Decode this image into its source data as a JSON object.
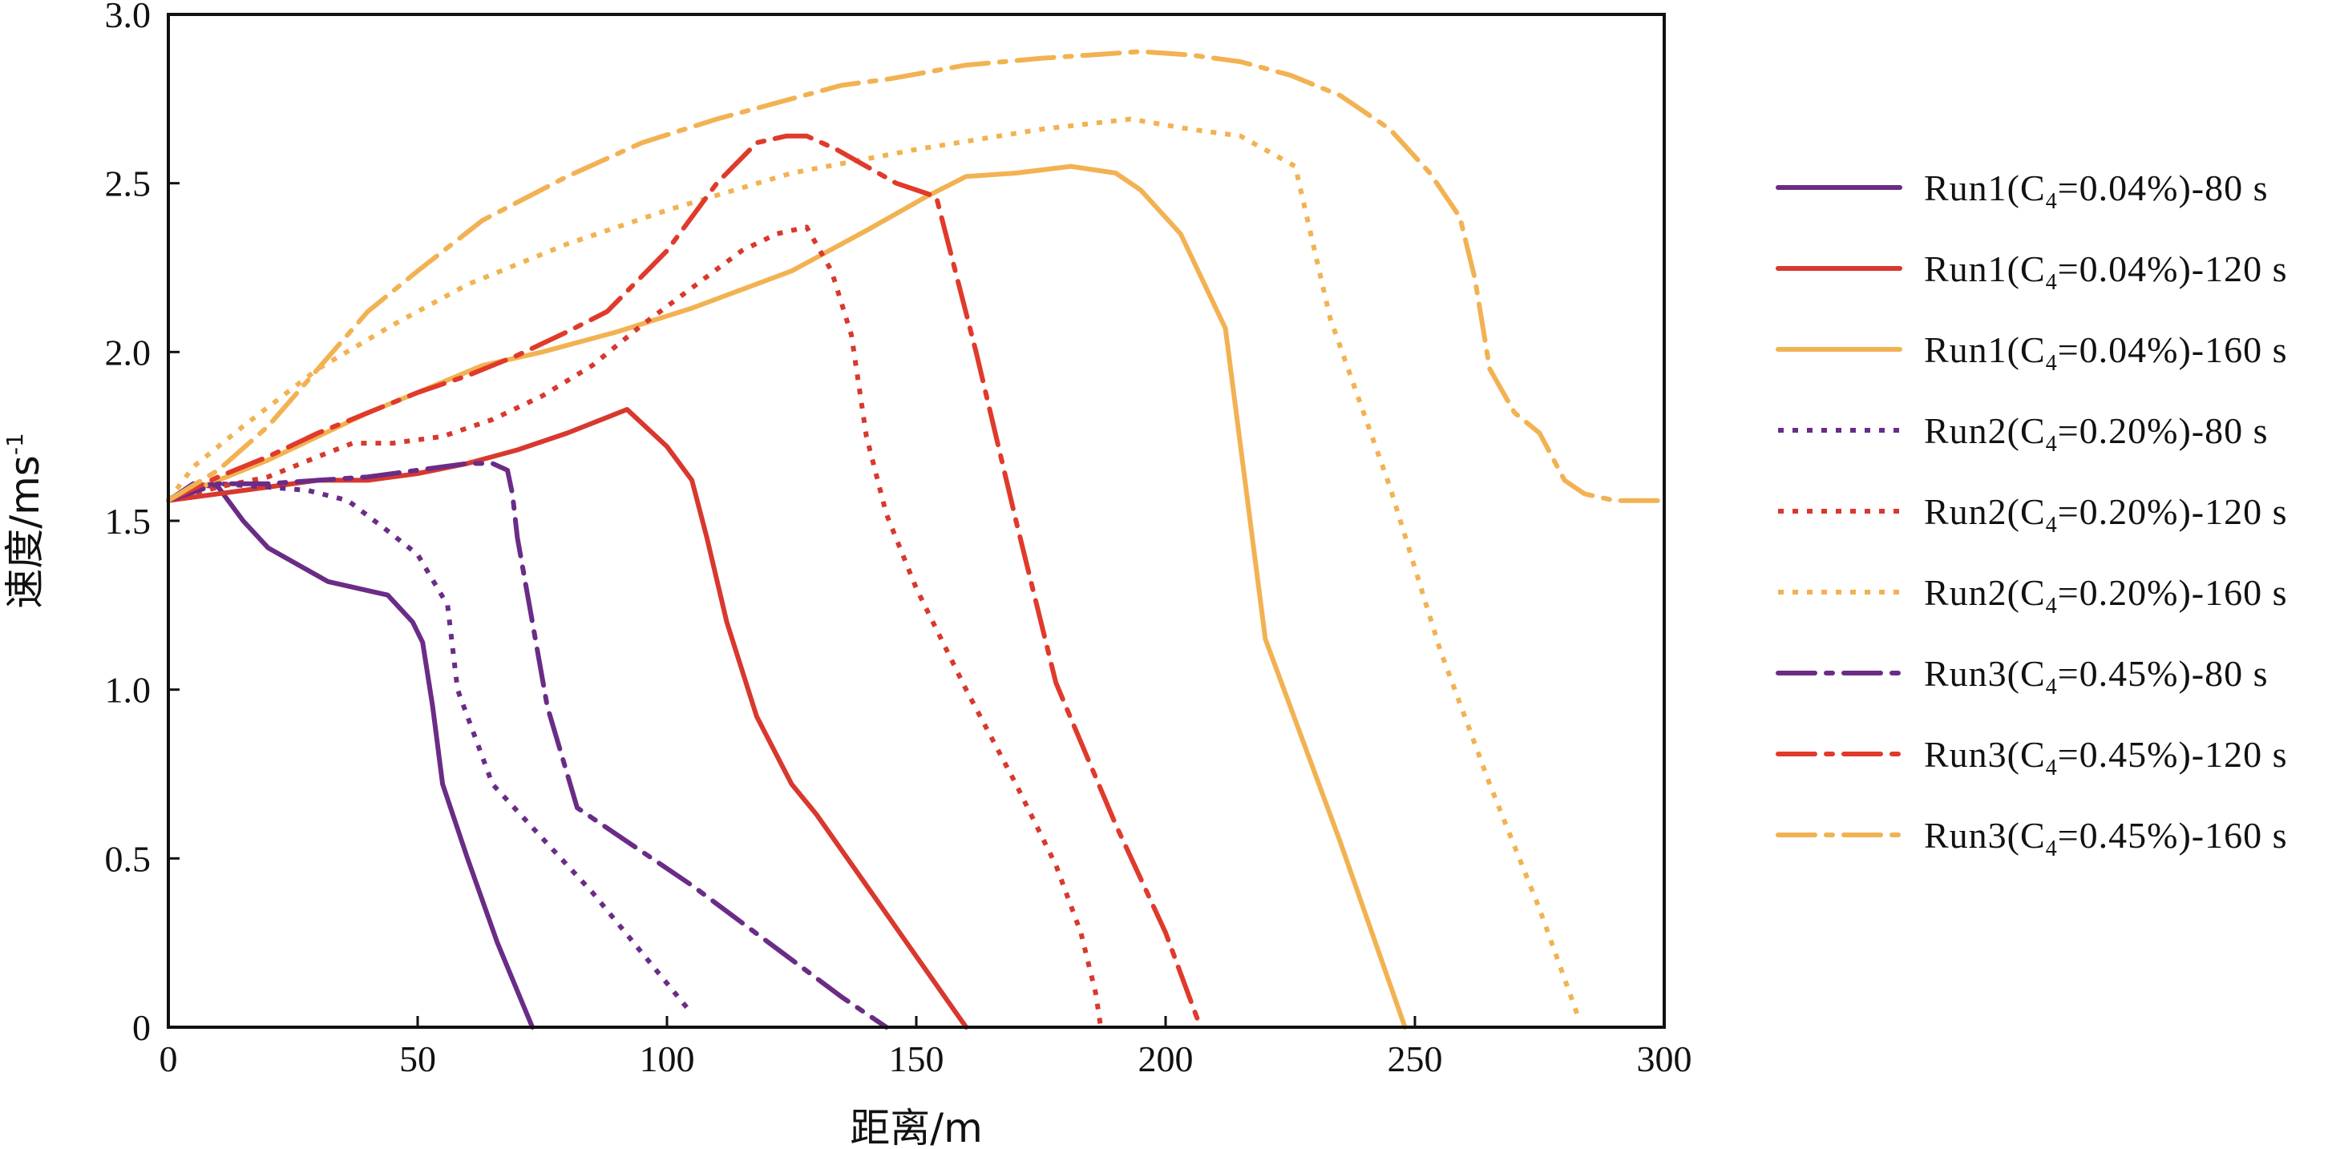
{
  "chart_data": {
    "type": "line",
    "xlabel": "距离/m",
    "ylabel": "速度/ms",
    "ylabel_superscript": "-1",
    "xlim": [
      0,
      300
    ],
    "ylim": [
      0,
      3.0
    ],
    "x_ticks": [
      0,
      50,
      100,
      150,
      200,
      250,
      300
    ],
    "y_ticks": [
      0,
      0.5,
      1.0,
      1.5,
      2.0,
      2.5,
      3.0
    ],
    "x_tick_labels": [
      "0",
      "50",
      "100",
      "150",
      "200",
      "250",
      "300"
    ],
    "y_tick_labels": [
      "0",
      "0.5",
      "1.0",
      "1.5",
      "2.0",
      "2.5",
      "3.0"
    ],
    "grid": false,
    "legend_position": "right",
    "series": [
      {
        "name": "Run1(C4=0.04%)-80 s",
        "label_main": "Run1(C",
        "label_sub": "4",
        "label_rest": "=0.04%)-80 s",
        "color": "#6a2c86",
        "dash": "solid",
        "x": [
          0,
          5,
          10,
          15,
          20,
          32,
          44,
          49,
          51,
          53,
          55,
          60,
          66,
          73
        ],
        "y": [
          1.56,
          1.61,
          1.6,
          1.5,
          1.42,
          1.32,
          1.28,
          1.2,
          1.14,
          0.95,
          0.72,
          0.5,
          0.25,
          0
        ]
      },
      {
        "name": "Run1(C4=0.04%)-120 s",
        "label_main": "Run1(C",
        "label_sub": "4",
        "label_rest": "=0.04%)-120 s",
        "color": "#d8382e",
        "dash": "solid",
        "x": [
          0,
          10,
          20,
          30,
          40,
          50,
          60,
          70,
          80,
          92,
          100,
          105,
          108,
          112,
          118,
          125,
          130,
          140,
          150,
          160
        ],
        "y": [
          1.56,
          1.58,
          1.6,
          1.62,
          1.62,
          1.64,
          1.67,
          1.71,
          1.76,
          1.83,
          1.72,
          1.62,
          1.45,
          1.2,
          0.92,
          0.72,
          0.63,
          0.42,
          0.21,
          0
        ]
      },
      {
        "name": "Run1(C4=0.04%)-160 s",
        "label_main": "Run1(C",
        "label_sub": "4",
        "label_rest": "=0.04%)-160 s",
        "color": "#f2b252",
        "dash": "solid",
        "x": [
          0,
          10,
          20,
          30,
          40,
          50,
          63,
          75,
          90,
          105,
          125,
          140,
          152,
          160,
          170,
          181,
          190,
          195,
          203,
          212,
          220,
          235,
          248
        ],
        "y": [
          1.56,
          1.62,
          1.68,
          1.75,
          1.82,
          1.88,
          1.96,
          2.0,
          2.06,
          2.13,
          2.24,
          2.36,
          2.46,
          2.52,
          2.53,
          2.55,
          2.53,
          2.48,
          2.35,
          2.07,
          1.15,
          0.55,
          0
        ]
      },
      {
        "name": "Run2(C4=0.20%)-80 s",
        "label_main": "Run2(C",
        "label_sub": "4",
        "label_rest": "=0.20%)-80 s",
        "color": "#6a2c86",
        "dash": "dot",
        "x": [
          0,
          5,
          10,
          20,
          28,
          36,
          44,
          50,
          56,
          58,
          61,
          65,
          75,
          85,
          95,
          105
        ],
        "y": [
          1.56,
          1.6,
          1.61,
          1.6,
          1.59,
          1.56,
          1.47,
          1.4,
          1.25,
          1.0,
          0.88,
          0.72,
          0.56,
          0.4,
          0.22,
          0.04
        ]
      },
      {
        "name": "Run2(C4=0.20%)-120 s",
        "label_main": "Run2(C",
        "label_sub": "4",
        "label_rest": "=0.20%)-120 s",
        "color": "#d8382e",
        "dash": "dot",
        "x": [
          0,
          10,
          20,
          30,
          37,
          45,
          55,
          65,
          75,
          85,
          95,
          105,
          115,
          122,
          128,
          133,
          137,
          140,
          144,
          150,
          160,
          170,
          178,
          183,
          186,
          187
        ],
        "y": [
          1.56,
          1.6,
          1.63,
          1.69,
          1.73,
          1.73,
          1.75,
          1.8,
          1.87,
          1.96,
          2.08,
          2.19,
          2.3,
          2.35,
          2.37,
          2.24,
          2.05,
          1.75,
          1.52,
          1.3,
          1.0,
          0.72,
          0.48,
          0.28,
          0.1,
          0
        ]
      },
      {
        "name": "Run2(C4=0.20%)-160 s",
        "label_main": "Run2(C",
        "label_sub": "4",
        "label_rest": "=0.20%)-160 s",
        "color": "#f2b252",
        "dash": "dot",
        "x": [
          0,
          5,
          15,
          30,
          45,
          60,
          80,
          100,
          125,
          150,
          175,
          193,
          205,
          215,
          226,
          233,
          245,
          255,
          265,
          275,
          283
        ],
        "y": [
          1.56,
          1.66,
          1.78,
          1.95,
          2.08,
          2.2,
          2.32,
          2.42,
          2.53,
          2.6,
          2.66,
          2.69,
          2.66,
          2.64,
          2.55,
          2.1,
          1.6,
          1.12,
          0.72,
          0.35,
          0.02
        ]
      },
      {
        "name": "Run3(C4=0.45%)-80 s",
        "label_main": "Run3(C",
        "label_sub": "4",
        "label_rest": "=0.45%)-80 s",
        "color": "#6a2c86",
        "dash": "dashdot",
        "x": [
          0,
          10,
          20,
          30,
          40,
          50,
          60,
          65,
          68,
          69,
          70,
          73,
          76,
          80,
          82,
          85,
          95,
          105,
          115,
          125,
          135,
          144
        ],
        "y": [
          1.56,
          1.61,
          1.61,
          1.62,
          1.63,
          1.65,
          1.67,
          1.67,
          1.65,
          1.58,
          1.45,
          1.2,
          0.95,
          0.75,
          0.65,
          0.62,
          0.52,
          0.42,
          0.31,
          0.2,
          0.09,
          0
        ]
      },
      {
        "name": "Run3(C4=0.45%)-120 s",
        "label_main": "Run3(C",
        "label_sub": "4",
        "label_rest": "=0.45%)-120 s",
        "color": "#e03a2b",
        "dash": "dashdot",
        "x": [
          0,
          10,
          20,
          30,
          40,
          50,
          60,
          70,
          80,
          88,
          100,
          110,
          118,
          124,
          128,
          134,
          140,
          146,
          154,
          162,
          170,
          178,
          182,
          190,
          200,
          207
        ],
        "y": [
          1.56,
          1.63,
          1.69,
          1.76,
          1.82,
          1.88,
          1.93,
          1.99,
          2.06,
          2.12,
          2.3,
          2.5,
          2.62,
          2.64,
          2.64,
          2.6,
          2.55,
          2.5,
          2.46,
          2.0,
          1.5,
          1.02,
          0.88,
          0.6,
          0.28,
          0
        ]
      },
      {
        "name": "Run3(C4=0.45%)-160 s",
        "label_main": "Run3(C",
        "label_sub": "4",
        "label_rest": "=0.45%)-160 s",
        "color": "#f2b252",
        "dash": "dashdot",
        "x": [
          0,
          10,
          20,
          30,
          40,
          50,
          63,
          80,
          95,
          110,
          125,
          135,
          145,
          160,
          175,
          185,
          195,
          205,
          215,
          225,
          235,
          245,
          253,
          259,
          262,
          265,
          270,
          275,
          280,
          284,
          290,
          300
        ],
        "y": [
          1.56,
          1.65,
          1.78,
          1.95,
          2.12,
          2.24,
          2.39,
          2.52,
          2.62,
          2.69,
          2.75,
          2.79,
          2.81,
          2.85,
          2.87,
          2.88,
          2.89,
          2.88,
          2.86,
          2.82,
          2.76,
          2.66,
          2.53,
          2.4,
          2.22,
          1.95,
          1.82,
          1.76,
          1.62,
          1.58,
          1.56,
          1.56
        ]
      }
    ]
  }
}
